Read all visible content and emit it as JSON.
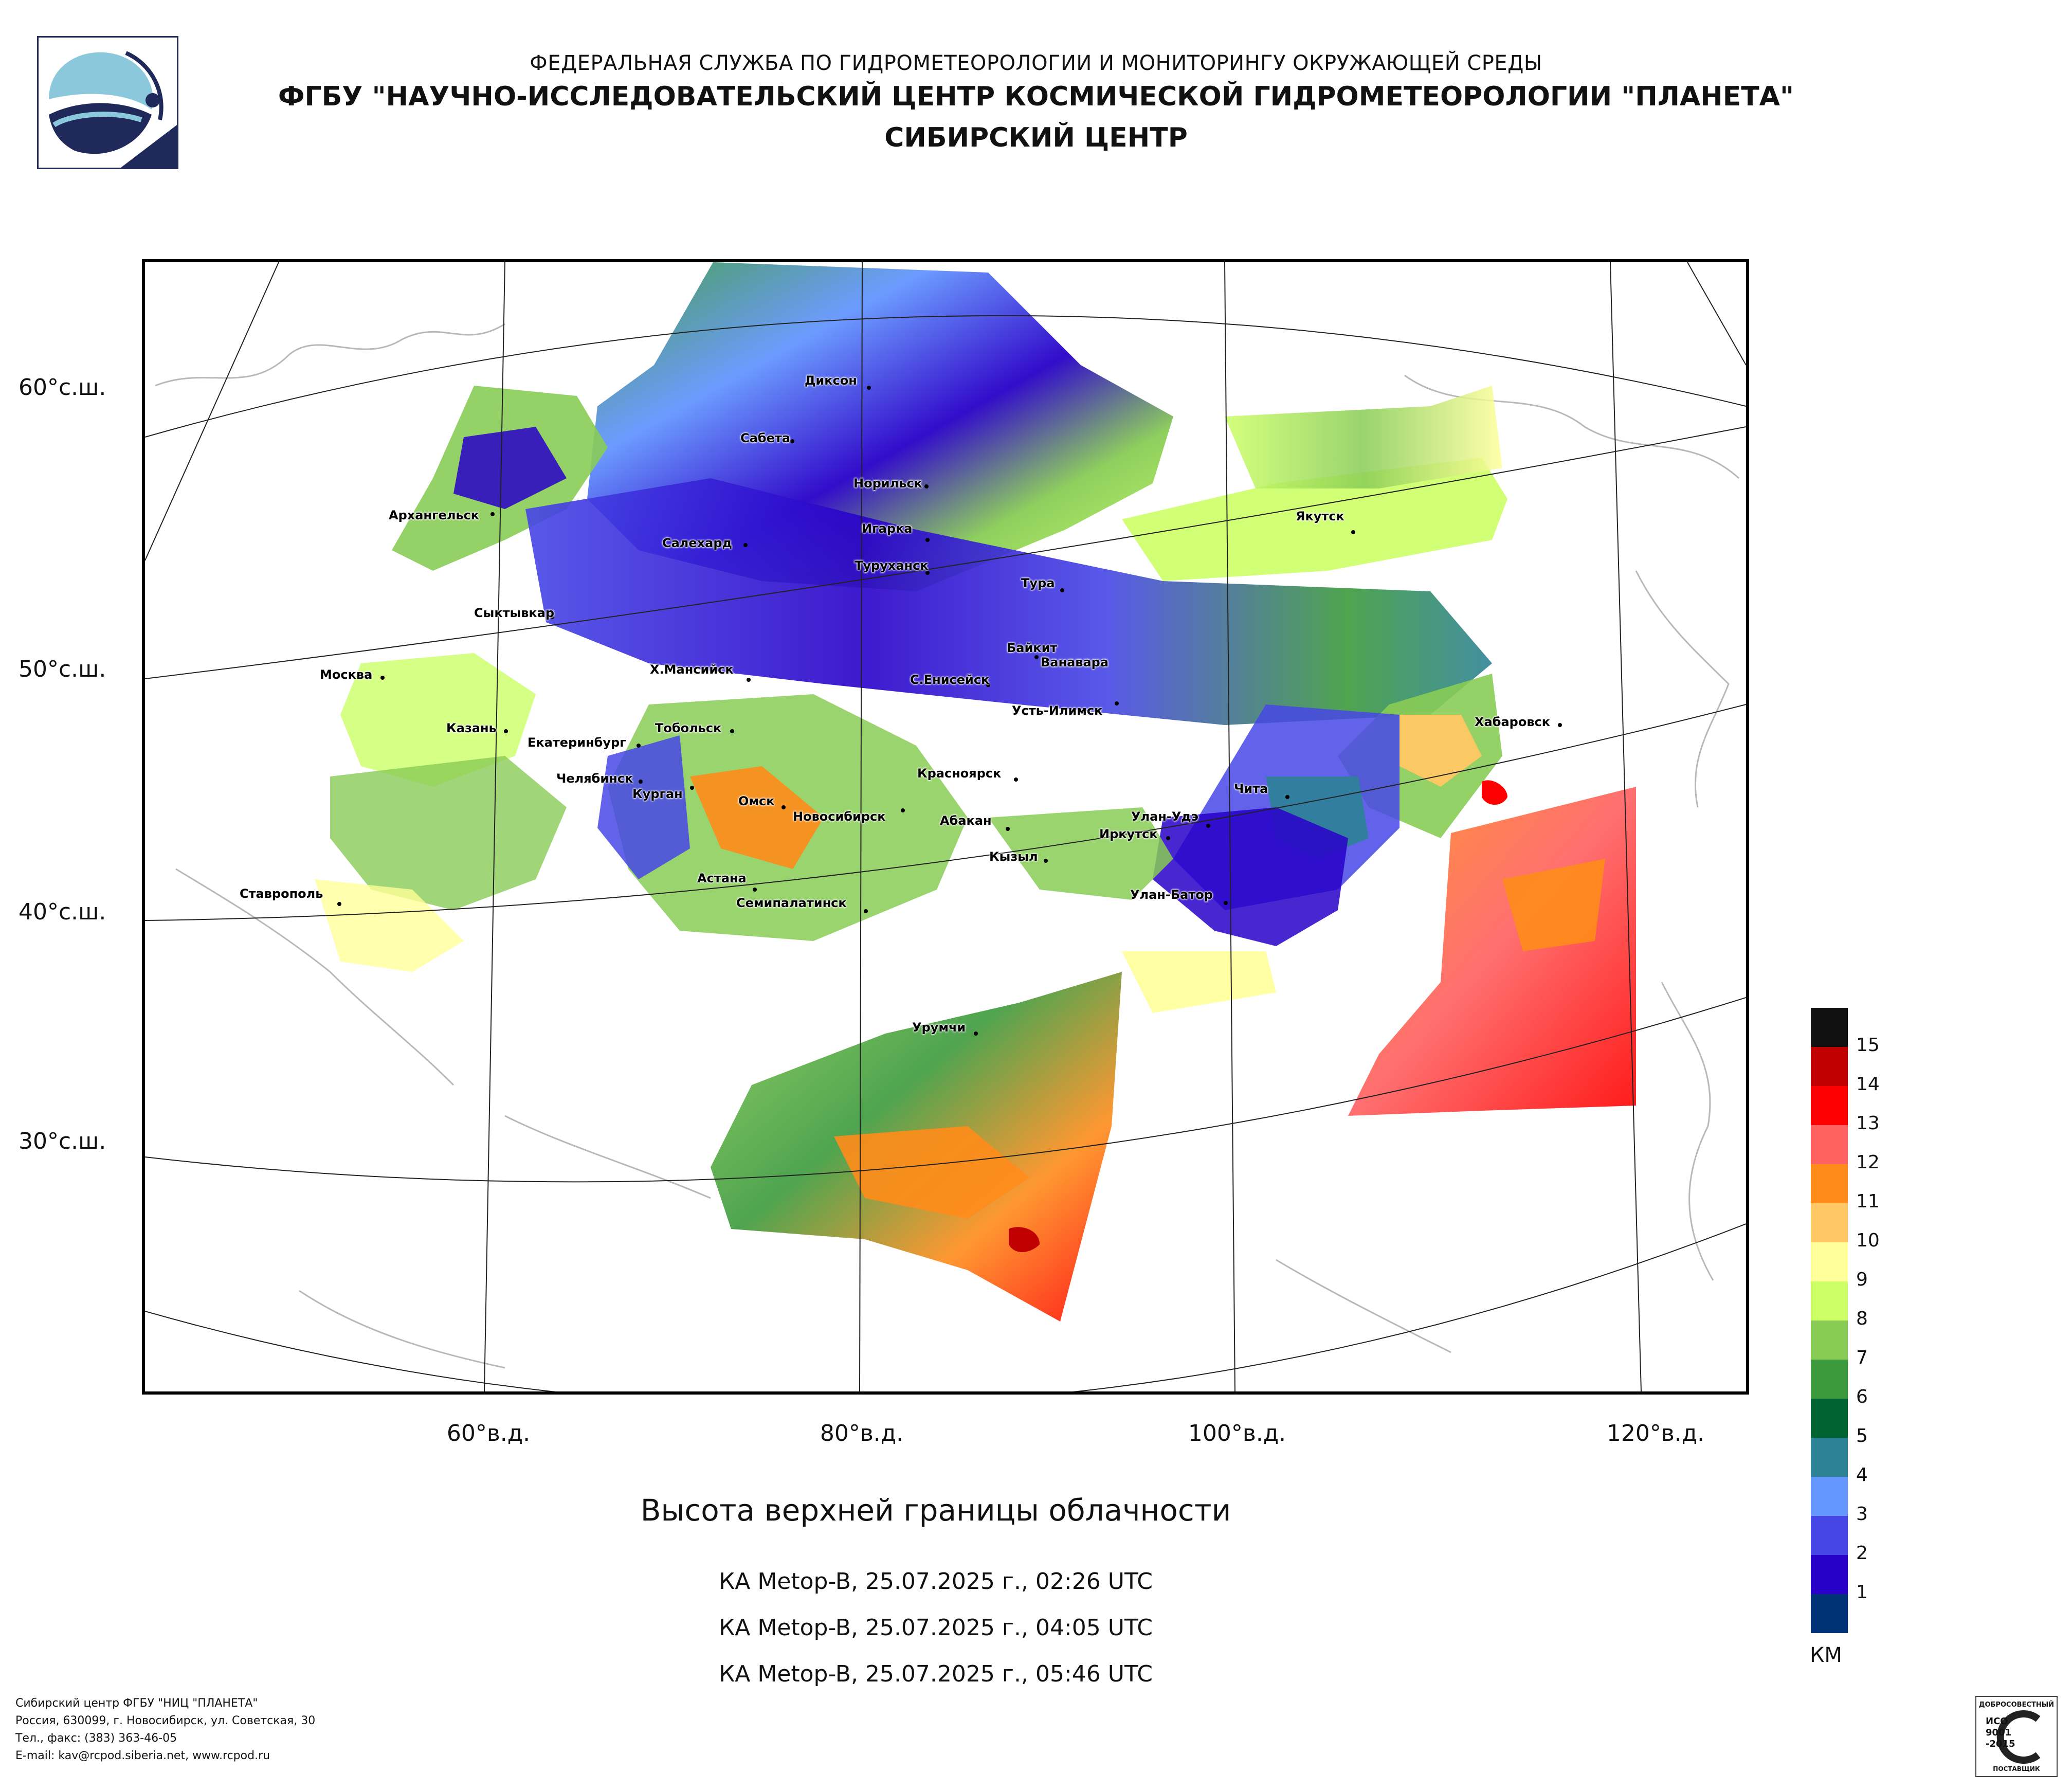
{
  "header": {
    "line1": "ФЕДЕРАЛЬНАЯ СЛУЖБА ПО ГИДРОМЕТЕОРОЛОГИИ И МОНИТОРИНГУ ОКРУЖАЮЩЕЙ СРЕДЫ",
    "line2": "ФГБУ \"НАУЧНО-ИССЛЕДОВАТЕЛЬСКИЙ ЦЕНТР КОСМИЧЕСКОЙ ГИДРОМЕТЕОРОЛОГИИ \"ПЛАНЕТА\"",
    "line3": "СИБИРСКИЙ ЦЕНТР"
  },
  "map": {
    "lat_labels": [
      "60°с.ш.",
      "50°с.ш.",
      "40°с.ш.",
      "30°с.ш."
    ],
    "lon_labels": [
      "60°в.д.",
      "80°в.д.",
      "100°в.д.",
      "120°в.д."
    ],
    "cities": [
      "Диксон",
      "Сабета",
      "Норильск",
      "Архангельск",
      "Салехард",
      "Игарка",
      "Якутск",
      "Туруханск",
      "Тура",
      "Сыктывкар",
      "Байкит",
      "Ванавара",
      "Москва",
      "Х.Мансийск",
      "С.Енисейск",
      "Усть-Илимск",
      "Казань",
      "Екатеринбург",
      "Тобольск",
      "Хабаровск",
      "Челябинск",
      "Красноярск",
      "Курган",
      "Омск",
      "Новосибирск",
      "Чита",
      "Абакан",
      "Улан-Удэ",
      "Иркутск",
      "Кызыл",
      "Астана",
      "Ставрополь",
      "Улан-Батор",
      "Семипалатинск",
      "Урумчи"
    ]
  },
  "title": "Высота верхней границы облачности",
  "passes": [
    "КА Metop-B, 25.07.2025 г., 02:26 UTC",
    "КА Metop-B, 25.07.2025 г., 04:05 UTC",
    "КА Metop-B, 25.07.2025 г., 05:46 UTC"
  ],
  "legend": {
    "unit": "КМ",
    "labels": [
      "15",
      "14",
      "13",
      "12",
      "11",
      "10",
      "9",
      "8",
      "7",
      "6",
      "5",
      "4",
      "3",
      "2",
      "1"
    ],
    "colors": [
      "#111111",
      "#c00000",
      "#ff0000",
      "#ff6060",
      "#ff8c1a",
      "#ffc864",
      "#ffff99",
      "#ccff66",
      "#88cc55",
      "#3c9a3c",
      "#006432",
      "#2e8296",
      "#6496ff",
      "#4646e6",
      "#2800c8",
      "#003278"
    ]
  },
  "footer": {
    "line1": "Сибирский центр ФГБУ \"НИЦ \"ПЛАНЕТА\"",
    "line2": "Россия, 630099, г. Новосибирск, ул. Советская, 30",
    "line3": "Тел., факс: (383) 363-46-05",
    "line4": "E-mail: kav@rcpod.siberia.net, www.rcpod.ru"
  },
  "iso_badge": {
    "top": "ДОБРОСОВЕСТНЫЙ",
    "l1": "ИСО",
    "l2": "9001",
    "l3": "-2015",
    "bottom": "ПОСТАВЩИК"
  }
}
